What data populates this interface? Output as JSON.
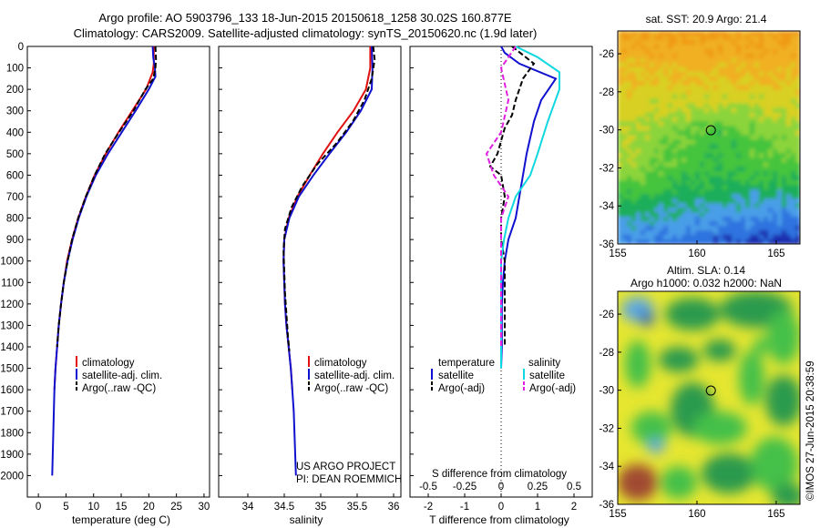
{
  "header": {
    "line1": "Argo profile: AO 5903796_133 18-Jun-2015 20150618_1258 30.02S 160.877E",
    "line2": "Climatology: CARS2009. Satellite-adjusted climatology: synTS_20150620.nc (1.9d later)"
  },
  "sst_map": {
    "title": "sat. SST: 20.9 Argo: 21.4"
  },
  "sla_map": {
    "title1": "Altim. SLA: 0.14",
    "title2": "Argo h1000: 0.032 h2000: NaN"
  },
  "project": {
    "line1": "US ARGO PROJECT",
    "line2": "PI: DEAN ROEMMICH"
  },
  "stamp": "©IMOS 27-Jun-2015 20:38:59",
  "colors": {
    "climatology": "#e01010",
    "satellite": "#1010d0",
    "argo": "#000000",
    "salinity_satellite": "#10d8e0",
    "salinity_argo": "#e020e0",
    "sst_ramp": [
      "#1a2fb0",
      "#2f73df",
      "#4a9ee8",
      "#1fae5a",
      "#45c43e",
      "#8cd43a",
      "#d8d020",
      "#f0b020",
      "#f09a18"
    ],
    "sla_ramp": [
      "#a04a30",
      "#2a9a4e",
      "#44c04a",
      "#e6e630",
      "#5fa8e0",
      "#2a5fb8"
    ]
  },
  "chart_data": [
    {
      "type": "line",
      "panel": "temperature",
      "xlabel": "temperature (deg C)",
      "ylabel": "",
      "xlim": [
        -2,
        31
      ],
      "ylim": [
        2100,
        0
      ],
      "xticks": [
        0,
        5,
        10,
        15,
        20,
        25,
        30
      ],
      "yticks": [
        0,
        100,
        200,
        300,
        400,
        500,
        600,
        700,
        800,
        900,
        1000,
        1100,
        1200,
        1300,
        1400,
        1500,
        1600,
        1700,
        1800,
        1900,
        2000
      ],
      "legend": [
        "climatology",
        "satellite-adj. clim.",
        "Argo(..raw -QC)"
      ],
      "legend_placement": "lower-center",
      "series": [
        {
          "name": "climatology",
          "style": "solid",
          "color": "#e01010",
          "points": [
            [
              20.9,
              0
            ],
            [
              20.9,
              80
            ],
            [
              20.7,
              120
            ],
            [
              19.5,
              200
            ],
            [
              17.0,
              300
            ],
            [
              14.5,
              400
            ],
            [
              12.2,
              500
            ],
            [
              10.2,
              600
            ],
            [
              8.6,
              700
            ],
            [
              7.2,
              800
            ],
            [
              6.1,
              900
            ],
            [
              5.2,
              1000
            ],
            [
              4.6,
              1100
            ],
            [
              4.1,
              1200
            ],
            [
              3.7,
              1300
            ],
            [
              3.4,
              1400
            ],
            [
              3.1,
              1500
            ],
            [
              2.9,
              1600
            ]
          ]
        },
        {
          "name": "satellite-adj. clim.",
          "style": "solid",
          "color": "#1010d0",
          "points": [
            [
              20.7,
              0
            ],
            [
              20.8,
              50
            ],
            [
              21.1,
              100
            ],
            [
              21.2,
              140
            ],
            [
              20.0,
              200
            ],
            [
              17.6,
              300
            ],
            [
              15.1,
              400
            ],
            [
              12.6,
              500
            ],
            [
              10.4,
              600
            ],
            [
              8.7,
              700
            ],
            [
              7.3,
              800
            ],
            [
              6.2,
              900
            ],
            [
              5.3,
              1000
            ],
            [
              4.6,
              1100
            ],
            [
              4.1,
              1200
            ],
            [
              3.7,
              1300
            ],
            [
              3.4,
              1400
            ],
            [
              3.1,
              1500
            ],
            [
              2.9,
              1600
            ],
            [
              2.8,
              1700
            ],
            [
              2.7,
              1800
            ],
            [
              2.6,
              1900
            ],
            [
              2.5,
              2000
            ]
          ]
        },
        {
          "name": "Argo(..raw -QC)",
          "style": "dashed",
          "color": "#000000",
          "points": [
            [
              21.2,
              0
            ],
            [
              21.3,
              60
            ],
            [
              21.2,
              100
            ],
            [
              20.8,
              150
            ],
            [
              19.4,
              200
            ],
            [
              17.2,
              300
            ],
            [
              14.6,
              400
            ],
            [
              12.1,
              500
            ],
            [
              10.2,
              600
            ],
            [
              8.6,
              700
            ],
            [
              7.2,
              800
            ],
            [
              6.1,
              900
            ],
            [
              5.3,
              1000
            ],
            [
              4.6,
              1100
            ],
            [
              4.1,
              1200
            ],
            [
              3.7,
              1300
            ],
            [
              3.4,
              1400
            ]
          ]
        }
      ]
    },
    {
      "type": "line",
      "panel": "salinity",
      "xlabel": "salinity",
      "ylabel": "",
      "xlim": [
        33.6,
        36.1
      ],
      "ylim": [
        2100,
        0
      ],
      "xticks": [
        34,
        34.5,
        35,
        35.5,
        36
      ],
      "legend": [
        "climatology",
        "satellite-adj. clim.",
        "Argo(..raw -QC)"
      ],
      "legend_placement": "lower-center",
      "series": [
        {
          "name": "climatology",
          "style": "solid",
          "color": "#e01010",
          "points": [
            [
              35.68,
              0
            ],
            [
              35.68,
              100
            ],
            [
              35.62,
              200
            ],
            [
              35.45,
              300
            ],
            [
              35.23,
              400
            ],
            [
              35.03,
              500
            ],
            [
              34.85,
              600
            ],
            [
              34.68,
              700
            ],
            [
              34.56,
              800
            ],
            [
              34.5,
              900
            ],
            [
              34.49,
              1000
            ],
            [
              34.5,
              1100
            ],
            [
              34.51,
              1200
            ],
            [
              34.53,
              1300
            ],
            [
              34.56,
              1400
            ],
            [
              34.59,
              1500
            ],
            [
              34.61,
              1600
            ]
          ]
        },
        {
          "name": "satellite-adj. clim.",
          "style": "solid",
          "color": "#1010d0",
          "points": [
            [
              35.7,
              0
            ],
            [
              35.71,
              100
            ],
            [
              35.7,
              200
            ],
            [
              35.55,
              300
            ],
            [
              35.35,
              400
            ],
            [
              35.12,
              500
            ],
            [
              34.9,
              600
            ],
            [
              34.7,
              700
            ],
            [
              34.57,
              800
            ],
            [
              34.5,
              900
            ],
            [
              34.49,
              1000
            ],
            [
              34.5,
              1100
            ],
            [
              34.51,
              1200
            ],
            [
              34.53,
              1300
            ],
            [
              34.56,
              1400
            ],
            [
              34.59,
              1500
            ],
            [
              34.61,
              1600
            ],
            [
              34.63,
              1700
            ],
            [
              34.64,
              1800
            ],
            [
              34.65,
              1900
            ],
            [
              34.66,
              2000
            ]
          ]
        },
        {
          "name": "Argo(..raw -QC)",
          "style": "dashed",
          "color": "#000000",
          "points": [
            [
              35.72,
              0
            ],
            [
              35.74,
              60
            ],
            [
              35.7,
              150
            ],
            [
              35.6,
              250
            ],
            [
              35.44,
              350
            ],
            [
              35.22,
              450
            ],
            [
              34.95,
              550
            ],
            [
              34.75,
              650
            ],
            [
              34.6,
              750
            ],
            [
              34.51,
              850
            ],
            [
              34.49,
              950
            ],
            [
              34.5,
              1050
            ],
            [
              34.51,
              1150
            ],
            [
              34.53,
              1250
            ],
            [
              34.55,
              1350
            ],
            [
              34.57,
              1420
            ]
          ]
        }
      ]
    },
    {
      "type": "line",
      "panel": "difference",
      "xlabel": "T difference from climatology",
      "top_xlabel": "S difference from climatology",
      "xlim": [
        -2.5,
        2.5
      ],
      "xticks": [
        -2,
        -1,
        0,
        1,
        2
      ],
      "top_xticks": [
        "-0.5",
        "-0.25",
        "0",
        "0.25",
        "0.5"
      ],
      "ylim": [
        2100,
        0
      ],
      "legend_headers": [
        "temperature",
        "salinity"
      ],
      "legend": [
        "satellite",
        "Argo(-adj)",
        "satellite",
        "Argo(-adj)"
      ],
      "legend_placement": "lower-center",
      "series": [
        {
          "name": "satellite",
          "group": "temperature",
          "style": "solid",
          "color": "#1010d0",
          "points": [
            [
              0,
              0
            ],
            [
              0.1,
              30
            ],
            [
              0.5,
              80
            ],
            [
              1.5,
              150
            ],
            [
              1.1,
              250
            ],
            [
              0.9,
              350
            ],
            [
              0.7,
              500
            ],
            [
              0.6,
              600
            ],
            [
              0.5,
              700
            ],
            [
              0.4,
              800
            ],
            [
              0.2,
              900
            ],
            [
              0.1,
              1000
            ],
            [
              0.05,
              1100
            ],
            [
              0.02,
              1200
            ],
            [
              0.02,
              1300
            ],
            [
              0.02,
              1400
            ],
            [
              0,
              1500
            ]
          ]
        },
        {
          "name": "Argo(-adj)",
          "group": "temperature",
          "style": "dashed",
          "color": "#000000",
          "points": [
            [
              0.3,
              0
            ],
            [
              0.9,
              80
            ],
            [
              0.6,
              150
            ],
            [
              0.4,
              250
            ],
            [
              0.3,
              320
            ],
            [
              0.1,
              380
            ],
            [
              -0.1,
              500
            ],
            [
              -0.3,
              560
            ],
            [
              0.0,
              600
            ],
            [
              0.1,
              700
            ],
            [
              0.0,
              800
            ],
            [
              0.0,
              900
            ],
            [
              0.1,
              1000
            ],
            [
              0.1,
              1100
            ],
            [
              0.1,
              1200
            ],
            [
              0.1,
              1300
            ],
            [
              0.1,
              1400
            ]
          ]
        },
        {
          "name": "satellite",
          "group": "salinity",
          "style": "solid",
          "color": "#10d8e0",
          "points": [
            [
              0.1,
              0
            ],
            [
              0.25,
              50
            ],
            [
              0.4,
              120
            ],
            [
              0.4,
              200
            ],
            [
              0.32,
              350
            ],
            [
              0.25,
              500
            ],
            [
              0.2,
              600
            ],
            [
              0.1,
              700
            ],
            [
              0.05,
              800
            ],
            [
              0.02,
              900
            ],
            [
              0.0,
              1000
            ],
            [
              0.0,
              1200
            ],
            [
              0.0,
              1500
            ]
          ]
        },
        {
          "name": "Argo(-adj)",
          "group": "salinity",
          "style": "dashed",
          "color": "#e020e0",
          "points": [
            [
              0.1,
              0
            ],
            [
              0.0,
              100
            ],
            [
              0.05,
              250
            ],
            [
              0.0,
              400
            ],
            [
              -0.1,
              500
            ],
            [
              -0.05,
              600
            ],
            [
              0.05,
              700
            ],
            [
              0.0,
              800
            ],
            [
              0.0,
              1000
            ],
            [
              0.0,
              1200
            ],
            [
              0.0,
              1400
            ]
          ]
        }
      ]
    },
    {
      "type": "heatmap",
      "panel": "sst_map",
      "title": "sat. SST: 20.9 Argo: 21.4",
      "xlim": [
        155,
        166.5
      ],
      "ylim": [
        -36,
        -24.8
      ],
      "xticks": [
        155,
        160,
        165
      ],
      "yticks": [
        -26,
        -28,
        -30,
        -32,
        -34,
        -36
      ],
      "argo_position": [
        160.877,
        -30.02
      ]
    },
    {
      "type": "heatmap",
      "panel": "sla_map",
      "title": "Altim. SLA: 0.14",
      "xlim": [
        155,
        166.5
      ],
      "ylim": [
        -36,
        -24.8
      ],
      "xticks": [
        155,
        160,
        165
      ],
      "yticks": [
        -26,
        -28,
        -30,
        -32,
        -34,
        -36
      ],
      "argo_position": [
        160.877,
        -30.02
      ]
    }
  ]
}
